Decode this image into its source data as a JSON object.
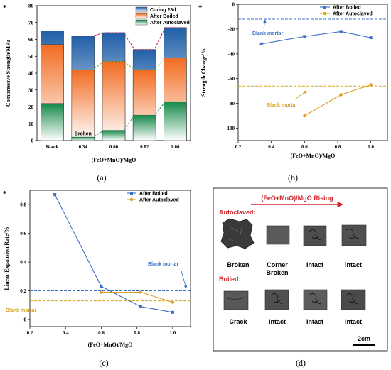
{
  "panels": {
    "a": {
      "caption": "(a)",
      "star": "*"
    },
    "b": {
      "caption": "(b)",
      "star": "*"
    },
    "c": {
      "caption": "(c)",
      "star": "*"
    },
    "d": {
      "caption": "(d)"
    }
  },
  "chart_data": [
    {
      "id": "a",
      "type": "bar",
      "ylabel": "Compressive Strength/MPa",
      "xlabel": "(FeO+MnO)/MgO",
      "categories": [
        "Blank",
        "0.34",
        "0.60",
        "0.82",
        "1.00"
      ],
      "ylim": [
        0,
        80
      ],
      "yticks": [
        0,
        10,
        20,
        30,
        40,
        50,
        60,
        70,
        80
      ],
      "series": [
        {
          "name": "Curing 28d",
          "values": [
            65,
            62,
            64,
            54,
            67
          ],
          "color": "#2b6cb0"
        },
        {
          "name": "After Boiled",
          "values": [
            57,
            42,
            47,
            42,
            49
          ],
          "color": "#f07a3a"
        },
        {
          "name": "After Autoclaved",
          "values": [
            22,
            2,
            6,
            15,
            23
          ],
          "color": "#2e9b4e"
        }
      ],
      "annotations": [
        "Broken"
      ]
    },
    {
      "id": "b",
      "type": "line",
      "ylabel": "Strength Change/%",
      "xlabel": "(FeO+MnO)/MgO",
      "xlim": [
        0.2,
        1.1
      ],
      "ylim": [
        -110,
        0
      ],
      "xticks": [
        0.2,
        0.4,
        0.6,
        0.8,
        1.0
      ],
      "yticks": [
        -100,
        -80,
        -60,
        -40,
        -20,
        0
      ],
      "series": [
        {
          "name": "After Boiled",
          "x": [
            0.34,
            0.6,
            0.82,
            1.0
          ],
          "y": [
            -32,
            -26,
            -22,
            -27
          ],
          "color": "#3a6fc4"
        },
        {
          "name": "After Autoclaved",
          "x": [
            0.6,
            0.82,
            1.0
          ],
          "y": [
            -90,
            -73,
            -65
          ],
          "color": "#d8a020"
        }
      ],
      "reference_lines": [
        {
          "label": "Blank mortar",
          "y": -12,
          "color": "#3a6fc4"
        },
        {
          "label": "Blank mortar",
          "y": -66,
          "color": "#d8a020"
        }
      ]
    },
    {
      "id": "c",
      "type": "line",
      "ylabel": "Linear Expansion Rate/%",
      "xlabel": "(FeO+MnO)/MgO",
      "xlim": [
        0.2,
        1.1
      ],
      "ylim": [
        -0.05,
        0.9
      ],
      "xticks": [
        0.2,
        0.4,
        0.6,
        0.8,
        1.0
      ],
      "yticks": [
        0,
        0.2,
        0.4,
        0.6,
        0.8
      ],
      "series": [
        {
          "name": "After Boiled",
          "x": [
            0.34,
            0.6,
            0.82,
            1.0
          ],
          "y": [
            0.87,
            0.23,
            0.09,
            0.05
          ],
          "color": "#3a6fc4"
        },
        {
          "name": "After Autoclaved",
          "x": [
            0.6,
            0.82,
            1.0
          ],
          "y": [
            0.19,
            0.19,
            0.12
          ],
          "color": "#d8a020"
        }
      ],
      "reference_lines": [
        {
          "label": "Blank mortar",
          "y": 0.2,
          "color": "#3a6fc4"
        },
        {
          "label": "Blank mortar",
          "y": 0.13,
          "color": "#d8a020"
        }
      ]
    }
  ],
  "photo_panel": {
    "title": "(FeO+MnO)/MgO Rising",
    "section1": "Autoclaved:",
    "section2": "Boiled:",
    "autoclaved_labels": [
      "Broken",
      "Corner\nBroken",
      "Intact",
      "Intact"
    ],
    "boiled_labels": [
      "Crack",
      "Intact",
      "Intact",
      "Intact"
    ],
    "scale_label": "2cm"
  }
}
